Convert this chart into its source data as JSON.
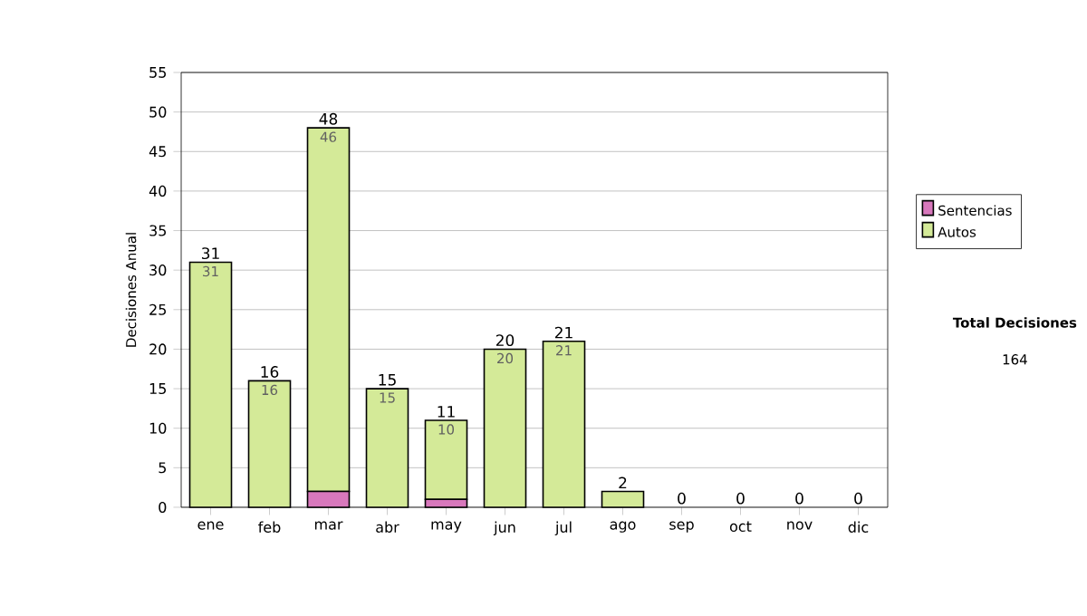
{
  "chart_data": {
    "type": "bar",
    "stacked": true,
    "ylabel": "Decisiones Anual",
    "categories": [
      "ene",
      "feb",
      "mar",
      "abr",
      "may",
      "jun",
      "jul",
      "ago",
      "sep",
      "oct",
      "nov",
      "dic"
    ],
    "series": [
      {
        "name": "Sentencias",
        "color": "#d878bc",
        "values": [
          0,
          0,
          2,
          0,
          1,
          0,
          0,
          0,
          0,
          0,
          0,
          0
        ]
      },
      {
        "name": "Autos",
        "color": "#d4ea98",
        "values": [
          31,
          16,
          46,
          15,
          10,
          20,
          21,
          2,
          0,
          0,
          0,
          0
        ],
        "value_labels": [
          "31",
          "16",
          "46",
          "15",
          "10",
          "20",
          "21",
          null,
          null,
          null,
          null,
          null
        ]
      }
    ],
    "totals": [
      "31",
      "16",
      "48",
      "15",
      "11",
      "20",
      "21",
      "2",
      "0",
      "0",
      "0",
      "0"
    ],
    "ylim": [
      0,
      55
    ],
    "yticks": [
      0,
      5,
      10,
      15,
      20,
      25,
      30,
      35,
      40,
      45,
      50,
      55
    ],
    "grid": "y",
    "legend": "right",
    "annotations": [
      "Total Decisiones",
      "164"
    ]
  }
}
